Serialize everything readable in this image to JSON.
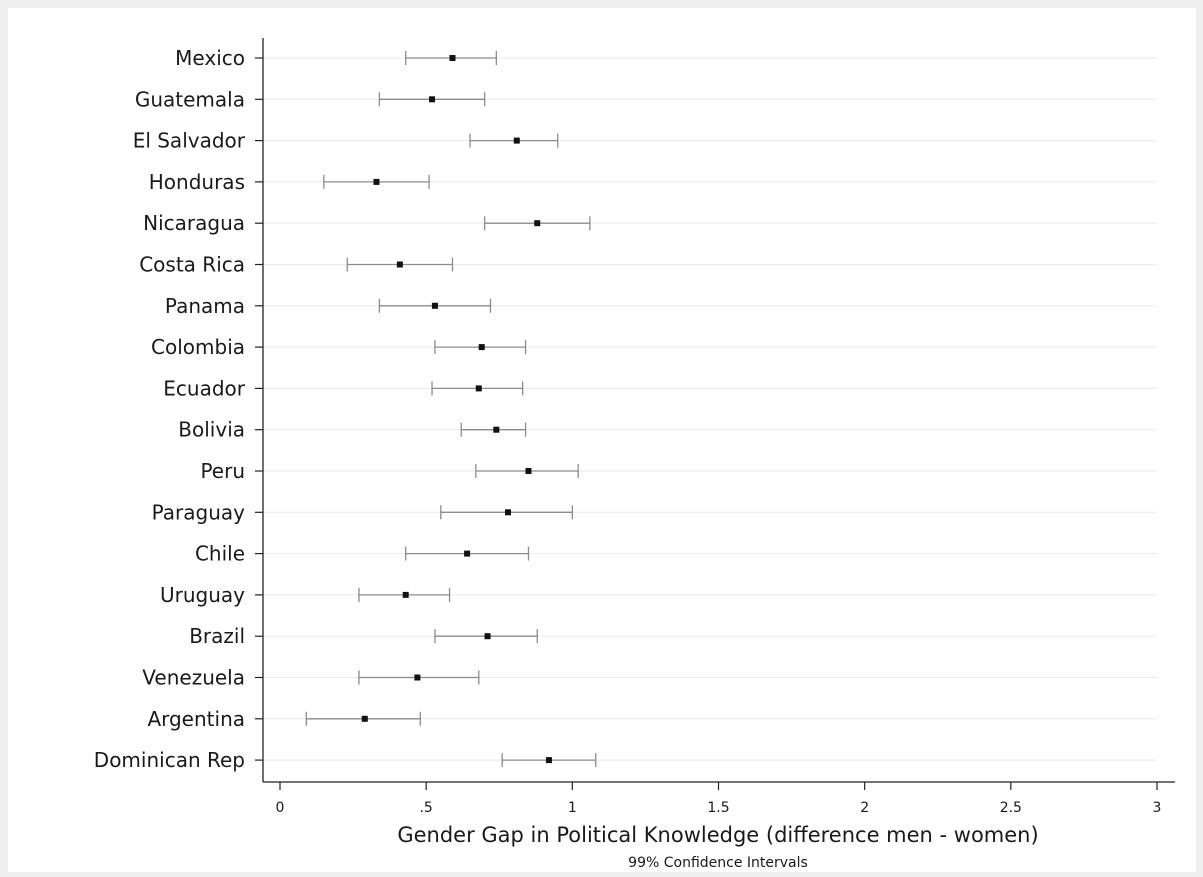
{
  "chart_data": {
    "type": "scatter",
    "subtype": "dot-plot-with-error-bars",
    "orientation": "horizontal",
    "xlabel": "Gender Gap in Political Knowledge (difference men - women)",
    "note": "99% Confidence Intervals",
    "xlim": [
      0,
      3
    ],
    "x_ticks": [
      0,
      0.5,
      1,
      1.5,
      2,
      2.5,
      3
    ],
    "x_tick_labels": [
      "0",
      ".5",
      "1",
      "1.5",
      "2",
      "2.5",
      "3"
    ],
    "grid": true,
    "categories": [
      "Mexico",
      "Guatemala",
      "El Salvador",
      "Honduras",
      "Nicaragua",
      "Costa Rica",
      "Panama",
      "Colombia",
      "Ecuador",
      "Bolivia",
      "Peru",
      "Paraguay",
      "Chile",
      "Uruguay",
      "Brazil",
      "Venezuela",
      "Argentina",
      "Dominican Rep"
    ],
    "estimates": [
      0.59,
      0.52,
      0.81,
      0.33,
      0.88,
      0.41,
      0.53,
      0.69,
      0.68,
      0.74,
      0.85,
      0.78,
      0.64,
      0.43,
      0.71,
      0.47,
      0.29,
      0.92
    ],
    "ci_low": [
      0.43,
      0.34,
      0.65,
      0.15,
      0.7,
      0.23,
      0.34,
      0.53,
      0.52,
      0.62,
      0.67,
      0.55,
      0.43,
      0.27,
      0.53,
      0.27,
      0.09,
      0.76
    ],
    "ci_high": [
      0.74,
      0.7,
      0.95,
      0.51,
      1.06,
      0.59,
      0.72,
      0.84,
      0.83,
      0.84,
      1.02,
      1.0,
      0.85,
      0.58,
      0.88,
      0.68,
      0.48,
      1.08
    ],
    "colors": {
      "outer_background": "#efefef",
      "plot_background": "#ffffff",
      "gridline": "#eaeaea",
      "error_bar": "#8c8c8c",
      "marker": "#111111",
      "axis": "#222222"
    }
  }
}
